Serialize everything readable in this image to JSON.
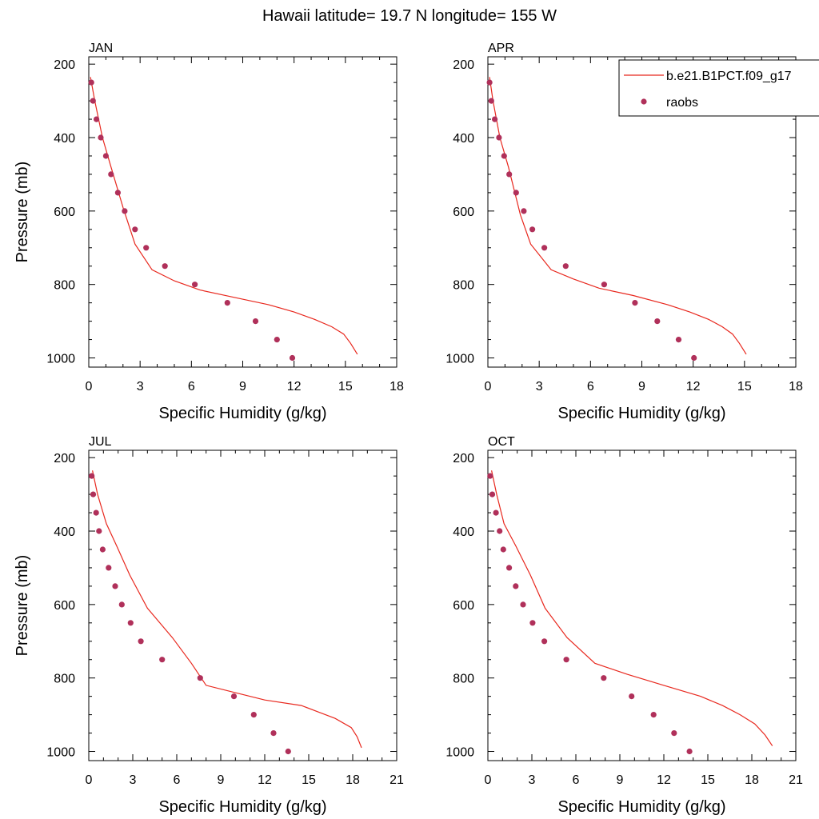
{
  "figure": {
    "title": "Hawaii  latitude= 19.7 N longitude= 155 W"
  },
  "legend": {
    "model_label": "b.e21.B1PCT.f09_g17",
    "obs_label": "raobs",
    "placement": "top-right of APR panel",
    "model_color": "#e8281e",
    "obs_color": "#b0305a"
  },
  "chart_data": [
    {
      "type": "line",
      "panel": "JAN",
      "xlabel": "Specific Humidity (g/kg)",
      "ylabel": "Pressure (mb)",
      "xlim": [
        0,
        18
      ],
      "ylim": [
        1000,
        200
      ],
      "x_ticks": [
        0,
        3,
        6,
        9,
        12,
        15,
        18
      ],
      "y_ticks": [
        200,
        400,
        600,
        800,
        1000
      ],
      "series": [
        {
          "name": "b.e21.B1PCT.f09_g17",
          "kind": "line",
          "points": [
            [
              0.1,
              235
            ],
            [
              0.35,
              300
            ],
            [
              0.8,
              400
            ],
            [
              1.3,
              480
            ],
            [
              2.0,
              590
            ],
            [
              2.7,
              690
            ],
            [
              3.7,
              760
            ],
            [
              5.0,
              790
            ],
            [
              6.5,
              815
            ],
            [
              8.5,
              835
            ],
            [
              10.5,
              855
            ],
            [
              12.0,
              875
            ],
            [
              13.2,
              895
            ],
            [
              14.2,
              915
            ],
            [
              14.9,
              935
            ],
            [
              15.3,
              960
            ],
            [
              15.7,
              990
            ]
          ]
        },
        {
          "name": "raobs",
          "kind": "scatter",
          "points": [
            [
              0.15,
              250
            ],
            [
              0.25,
              300
            ],
            [
              0.45,
              350
            ],
            [
              0.7,
              400
            ],
            [
              1.0,
              450
            ],
            [
              1.3,
              500
            ],
            [
              1.7,
              550
            ],
            [
              2.1,
              600
            ],
            [
              2.7,
              650
            ],
            [
              3.35,
              700
            ],
            [
              4.45,
              750
            ],
            [
              6.2,
              800
            ],
            [
              8.1,
              850
            ],
            [
              9.75,
              900
            ],
            [
              11.0,
              950
            ],
            [
              11.9,
              1000
            ]
          ]
        }
      ]
    },
    {
      "type": "line",
      "panel": "APR",
      "xlabel": "Specific Humidity (g/kg)",
      "ylabel": "",
      "xlim": [
        0,
        18
      ],
      "ylim": [
        1000,
        200
      ],
      "x_ticks": [
        0,
        3,
        6,
        9,
        12,
        15,
        18
      ],
      "y_ticks": [
        200,
        400,
        600,
        800,
        1000
      ],
      "series": [
        {
          "name": "b.e21.B1PCT.f09_g17",
          "kind": "line",
          "points": [
            [
              0.1,
              235
            ],
            [
              0.3,
              300
            ],
            [
              0.7,
              400
            ],
            [
              1.2,
              480
            ],
            [
              1.9,
              610
            ],
            [
              2.5,
              690
            ],
            [
              3.7,
              760
            ],
            [
              5.0,
              785
            ],
            [
              6.5,
              810
            ],
            [
              8.5,
              830
            ],
            [
              10.5,
              855
            ],
            [
              11.8,
              875
            ],
            [
              12.9,
              895
            ],
            [
              13.7,
              915
            ],
            [
              14.3,
              935
            ],
            [
              14.7,
              960
            ],
            [
              15.1,
              990
            ]
          ]
        },
        {
          "name": "raobs",
          "kind": "scatter",
          "points": [
            [
              0.1,
              250
            ],
            [
              0.2,
              300
            ],
            [
              0.4,
              350
            ],
            [
              0.65,
              400
            ],
            [
              0.95,
              450
            ],
            [
              1.25,
              500
            ],
            [
              1.65,
              550
            ],
            [
              2.1,
              600
            ],
            [
              2.6,
              650
            ],
            [
              3.3,
              700
            ],
            [
              4.55,
              750
            ],
            [
              6.8,
              800
            ],
            [
              8.6,
              850
            ],
            [
              9.9,
              900
            ],
            [
              11.15,
              950
            ],
            [
              12.05,
              1000
            ]
          ]
        }
      ]
    },
    {
      "type": "line",
      "panel": "JUL",
      "xlabel": "Specific Humidity (g/kg)",
      "ylabel": "Pressure (mb)",
      "xlim": [
        0,
        21
      ],
      "ylim": [
        1000,
        200
      ],
      "x_ticks": [
        0,
        3,
        6,
        9,
        12,
        15,
        18,
        21
      ],
      "y_ticks": [
        200,
        400,
        600,
        800,
        1000
      ],
      "series": [
        {
          "name": "b.e21.B1PCT.f09_g17",
          "kind": "line",
          "points": [
            [
              0.25,
              235
            ],
            [
              0.6,
              300
            ],
            [
              1.2,
              380
            ],
            [
              1.9,
              440
            ],
            [
              2.8,
              520
            ],
            [
              4.0,
              610
            ],
            [
              5.7,
              690
            ],
            [
              7.0,
              760
            ],
            [
              8.0,
              820
            ],
            [
              10.0,
              840
            ],
            [
              12.0,
              860
            ],
            [
              14.5,
              875
            ],
            [
              16.8,
              910
            ],
            [
              17.9,
              935
            ],
            [
              18.3,
              960
            ],
            [
              18.6,
              990
            ]
          ]
        },
        {
          "name": "raobs",
          "kind": "scatter",
          "points": [
            [
              0.2,
              250
            ],
            [
              0.3,
              300
            ],
            [
              0.5,
              350
            ],
            [
              0.7,
              400
            ],
            [
              0.95,
              450
            ],
            [
              1.35,
              500
            ],
            [
              1.8,
              550
            ],
            [
              2.25,
              600
            ],
            [
              2.85,
              650
            ],
            [
              3.55,
              700
            ],
            [
              5.0,
              750
            ],
            [
              7.6,
              800
            ],
            [
              9.9,
              850
            ],
            [
              11.25,
              900
            ],
            [
              12.6,
              950
            ],
            [
              13.6,
              1000
            ]
          ]
        }
      ]
    },
    {
      "type": "line",
      "panel": "OCT",
      "xlabel": "Specific Humidity (g/kg)",
      "ylabel": "",
      "xlim": [
        0,
        21
      ],
      "ylim": [
        1000,
        200
      ],
      "x_ticks": [
        0,
        3,
        6,
        9,
        12,
        15,
        18,
        21
      ],
      "y_ticks": [
        200,
        400,
        600,
        800,
        1000
      ],
      "series": [
        {
          "name": "b.e21.B1PCT.f09_g17",
          "kind": "line",
          "points": [
            [
              0.25,
              235
            ],
            [
              0.6,
              300
            ],
            [
              1.1,
              380
            ],
            [
              1.9,
              440
            ],
            [
              2.9,
              520
            ],
            [
              3.9,
              610
            ],
            [
              5.4,
              690
            ],
            [
              7.3,
              760
            ],
            [
              9.5,
              790
            ],
            [
              12.0,
              820
            ],
            [
              14.5,
              850
            ],
            [
              16.0,
              875
            ],
            [
              17.2,
              900
            ],
            [
              18.2,
              925
            ],
            [
              18.9,
              955
            ],
            [
              19.4,
              985
            ]
          ]
        },
        {
          "name": "raobs",
          "kind": "scatter",
          "points": [
            [
              0.15,
              250
            ],
            [
              0.3,
              300
            ],
            [
              0.55,
              350
            ],
            [
              0.8,
              400
            ],
            [
              1.05,
              450
            ],
            [
              1.45,
              500
            ],
            [
              1.9,
              550
            ],
            [
              2.4,
              600
            ],
            [
              3.05,
              650
            ],
            [
              3.85,
              700
            ],
            [
              5.35,
              750
            ],
            [
              7.9,
              800
            ],
            [
              9.8,
              850
            ],
            [
              11.3,
              900
            ],
            [
              12.7,
              950
            ],
            [
              13.75,
              1000
            ]
          ]
        }
      ]
    }
  ]
}
